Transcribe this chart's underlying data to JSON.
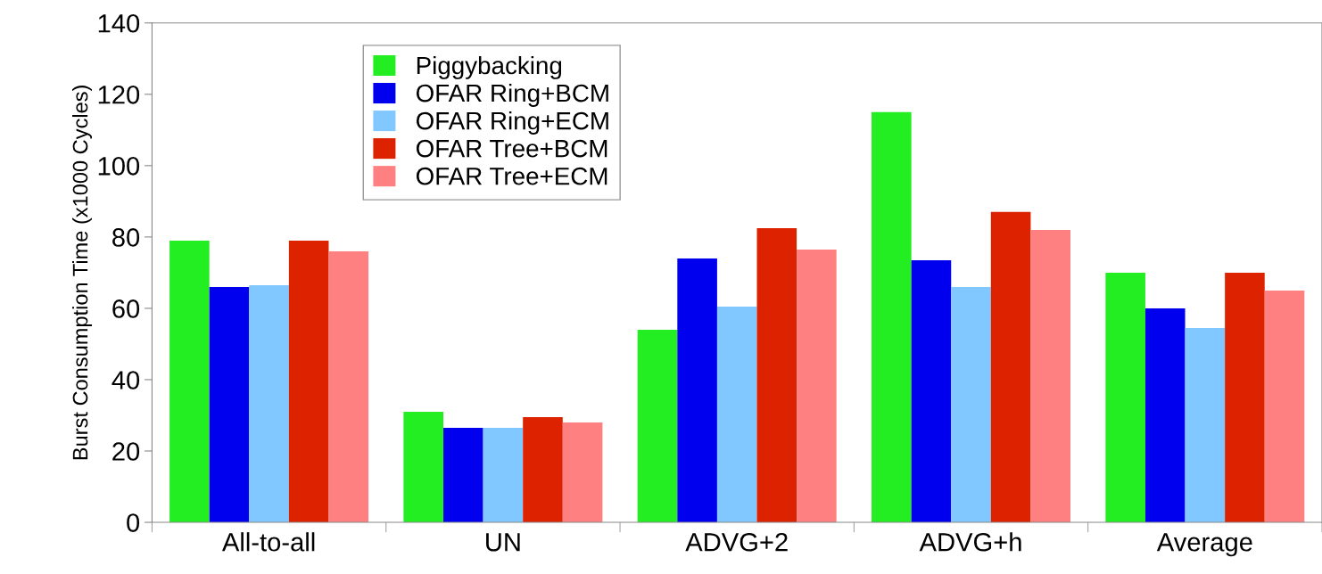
{
  "chart_data": {
    "type": "bar",
    "ylabel": "Burst Consumption Time (x1000 Cycles)",
    "categories": [
      "All-to-all",
      "UN",
      "ADVG+2",
      "ADVG+h",
      "Average"
    ],
    "series": [
      {
        "name": "Piggybacking",
        "color": "#22ee22",
        "values": [
          79,
          31,
          54,
          115,
          70
        ]
      },
      {
        "name": "OFAR Ring+BCM",
        "color": "#0000ee",
        "values": [
          66,
          26.5,
          74,
          73.5,
          60
        ]
      },
      {
        "name": "OFAR Ring+ECM",
        "color": "#80c8ff",
        "values": [
          66.5,
          26.5,
          60.5,
          66,
          54.5
        ]
      },
      {
        "name": "OFAR Tree+BCM",
        "color": "#dd2200",
        "values": [
          79,
          29.5,
          82.5,
          87,
          70
        ]
      },
      {
        "name": "OFAR Tree+ECM",
        "color": "#ff8080",
        "values": [
          76,
          28,
          76.5,
          82,
          65
        ]
      }
    ],
    "ylim": [
      0,
      140
    ],
    "yticks": [
      0,
      20,
      40,
      60,
      80,
      100,
      120,
      140
    ],
    "grid": false,
    "legend": "top left"
  }
}
